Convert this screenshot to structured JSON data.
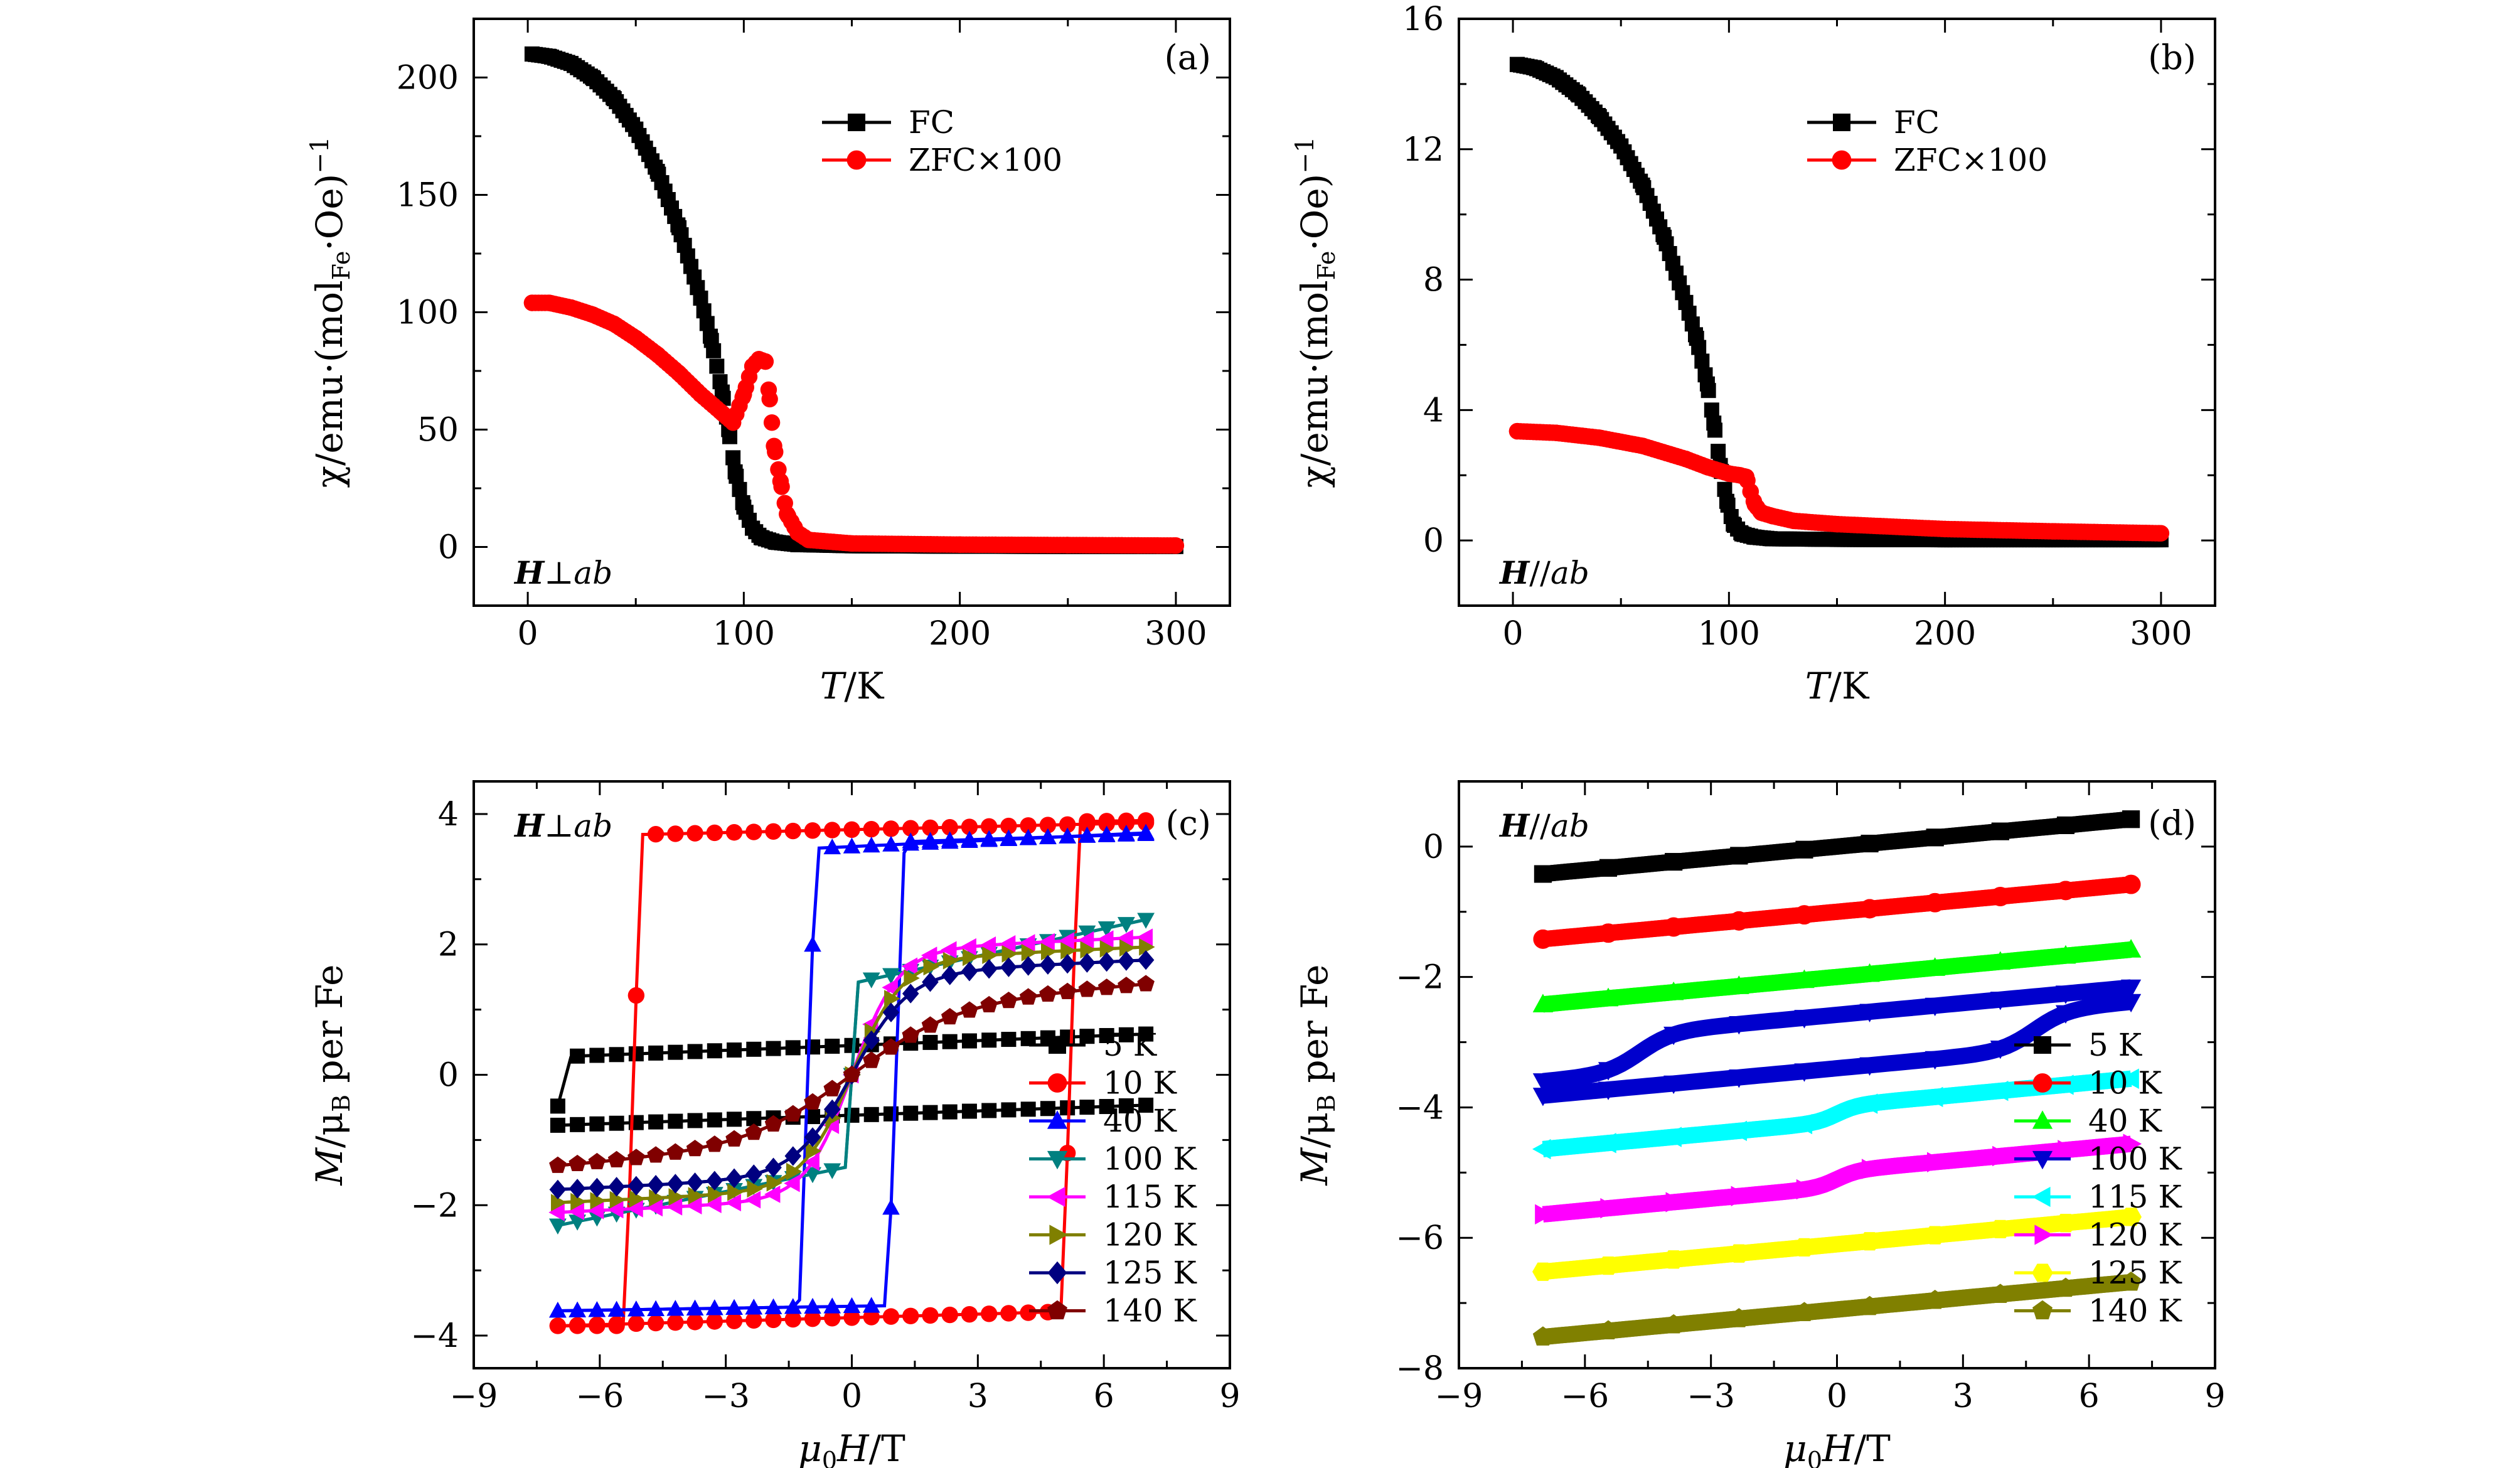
{
  "colors": {
    "black": "#000000",
    "red": "#ff0000",
    "blue": "#0000ff",
    "teal": "#008080",
    "magenta": "#ff00ff",
    "olive": "#808000",
    "navy": "#000080",
    "maroon": "#800000",
    "green": "#00ff00",
    "cyan": "#00ffff",
    "yellow": "#ffff00",
    "darkblue": "#0000cd"
  },
  "chart_data": [
    {
      "type": "scatter",
      "panel_label": "(a)",
      "field_label": "H⊥ab",
      "xlabel": "T/K",
      "ylabel": "χ/emu·(mol_Fe·Oe)⁻¹",
      "xlim": [
        -25,
        325
      ],
      "ylim": [
        -25,
        225
      ],
      "xticks": [
        0,
        100,
        200,
        300
      ],
      "yticks": [
        0,
        50,
        100,
        150,
        200
      ],
      "xtick_labels": [
        "0",
        "100",
        "200",
        "300"
      ],
      "ytick_labels": [
        "0",
        "50",
        "100",
        "150",
        "200"
      ],
      "legend_position": "upper-middle",
      "series": [
        {
          "name": "FC",
          "marker": "square",
          "color": "#000000",
          "x": [
            2,
            10,
            20,
            30,
            40,
            50,
            60,
            70,
            80,
            85,
            90,
            93,
            96,
            100,
            104,
            108,
            115,
            125,
            150,
            200,
            250,
            300
          ],
          "y": [
            210,
            209,
            206,
            200,
            191,
            178,
            160,
            136,
            106,
            88,
            66,
            50,
            32,
            17,
            8,
            4,
            2,
            1,
            0.5,
            0.3,
            0.2,
            0.2
          ]
        },
        {
          "name": "ZFC×100",
          "marker": "circle",
          "color": "#ff0000",
          "x": [
            2,
            10,
            20,
            30,
            40,
            50,
            60,
            70,
            80,
            90,
            95,
            100,
            104,
            107,
            110,
            112,
            114,
            117,
            120,
            125,
            130,
            150,
            200,
            250,
            300
          ],
          "y": [
            104,
            104,
            102,
            99,
            95,
            89,
            82,
            74,
            65,
            57,
            53,
            65,
            77,
            80,
            79,
            63,
            43,
            28,
            14,
            6,
            3,
            1.5,
            1,
            0.8,
            0.6
          ]
        }
      ]
    },
    {
      "type": "scatter",
      "panel_label": "(b)",
      "field_label": "H//ab",
      "xlabel": "T/K",
      "ylabel": "χ/emu·(mol_Fe·Oe)⁻¹",
      "xlim": [
        -25,
        325
      ],
      "ylim": [
        -2,
        16
      ],
      "xticks": [
        0,
        100,
        200,
        300
      ],
      "yticks": [
        0,
        4,
        8,
        12,
        16
      ],
      "xtick_labels": [
        "0",
        "100",
        "200",
        "300"
      ],
      "ytick_labels": [
        "0",
        "4",
        "8",
        "12",
        "16"
      ],
      "legend_position": "upper-middle",
      "series": [
        {
          "name": "FC",
          "marker": "square",
          "color": "#000000",
          "x": [
            2,
            10,
            20,
            30,
            40,
            50,
            60,
            70,
            80,
            85,
            90,
            93,
            96,
            99,
            102,
            106,
            112,
            120,
            150,
            200,
            250,
            300
          ],
          "y": [
            14.6,
            14.5,
            14.2,
            13.7,
            13.0,
            12.1,
            10.9,
            9.3,
            7.3,
            6.2,
            4.8,
            3.6,
            2.3,
            1.2,
            0.5,
            0.2,
            0.1,
            0.05,
            0.03,
            0.02,
            0.02,
            0.02
          ]
        },
        {
          "name": "ZFC×100",
          "marker": "circle",
          "color": "#ff0000",
          "x": [
            2,
            20,
            40,
            60,
            80,
            90,
            100,
            105,
            108,
            110,
            112,
            115,
            120,
            130,
            150,
            200,
            250,
            300
          ],
          "y": [
            3.35,
            3.3,
            3.15,
            2.9,
            2.5,
            2.25,
            2.05,
            2.0,
            1.95,
            1.5,
            1.1,
            0.85,
            0.75,
            0.6,
            0.5,
            0.35,
            0.28,
            0.22
          ]
        }
      ]
    },
    {
      "type": "line",
      "panel_label": "(c)",
      "field_label": "H⊥ab",
      "xlabel": "μ0H/T",
      "ylabel": "M/μB per Fe",
      "xlim": [
        -9,
        9
      ],
      "ylim": [
        -4.5,
        4.5
      ],
      "xticks": [
        -9,
        -6,
        -3,
        0,
        3,
        6,
        9
      ],
      "yticks": [
        -4,
        -2,
        0,
        2,
        4
      ],
      "xtick_labels": [
        "−9",
        "−6",
        "−3",
        "0",
        "3",
        "6",
        "9"
      ],
      "ytick_labels": [
        "−4",
        "−2",
        "0",
        "2",
        "4"
      ],
      "legend_position": "lower-right",
      "series": [
        {
          "name": "5 K",
          "marker": "square",
          "color": "#000000"
        },
        {
          "name": "10 K",
          "marker": "circle",
          "color": "#ff0000"
        },
        {
          "name": "40 K",
          "marker": "triangle-up",
          "color": "#0000ff"
        },
        {
          "name": "100 K",
          "marker": "triangle-down",
          "color": "#008080"
        },
        {
          "name": "115 K",
          "marker": "triangle-left",
          "color": "#ff00ff"
        },
        {
          "name": "120 K",
          "marker": "triangle-right",
          "color": "#808000"
        },
        {
          "name": "125 K",
          "marker": "diamond",
          "color": "#000080"
        },
        {
          "name": "140 K",
          "marker": "pentagon",
          "color": "#800000"
        }
      ]
    },
    {
      "type": "line",
      "panel_label": "(d)",
      "field_label": "H//ab",
      "xlabel": "μ0H/T",
      "ylabel": "M/μB per Fe",
      "xlim": [
        -9,
        9
      ],
      "ylim": [
        -8,
        1
      ],
      "xticks": [
        -9,
        -6,
        -3,
        0,
        3,
        6,
        9
      ],
      "yticks": [
        -8,
        -6,
        -4,
        -2,
        0
      ],
      "xtick_labels": [
        "−9",
        "−6",
        "−3",
        "0",
        "3",
        "6",
        "9"
      ],
      "ytick_labels": [
        "−8",
        "−6",
        "−4",
        "−2",
        "0"
      ],
      "legend_position": "lower-right",
      "series": [
        {
          "name": "5 K",
          "marker": "square",
          "color": "#000000"
        },
        {
          "name": "10 K",
          "marker": "circle",
          "color": "#ff0000"
        },
        {
          "name": "40 K",
          "marker": "triangle-up",
          "color": "#00ff00"
        },
        {
          "name": "100 K",
          "marker": "triangle-down",
          "color": "#0000cd"
        },
        {
          "name": "115 K",
          "marker": "triangle-left",
          "color": "#00ffff"
        },
        {
          "name": "120 K",
          "marker": "triangle-right",
          "color": "#ff00ff"
        },
        {
          "name": "125 K",
          "marker": "hexagon",
          "color": "#ffff00"
        },
        {
          "name": "140 K",
          "marker": "pentagon",
          "color": "#808000"
        }
      ]
    }
  ]
}
